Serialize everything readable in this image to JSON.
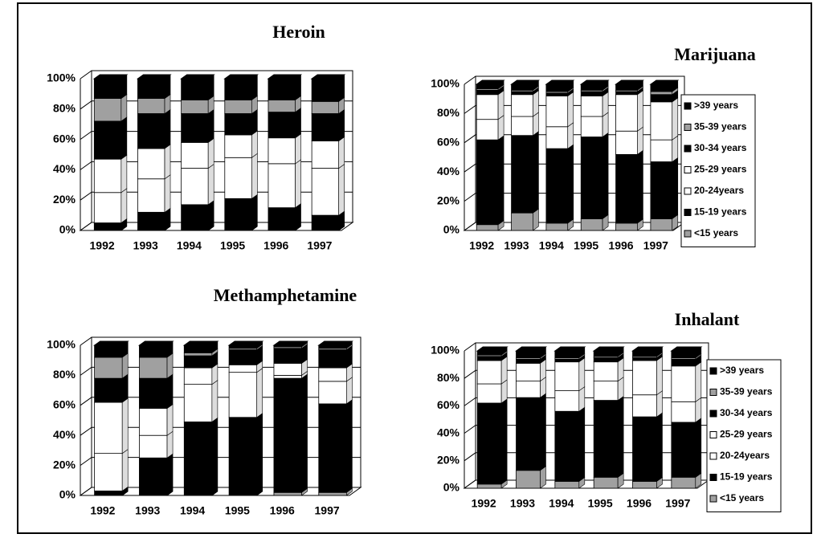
{
  "chart_data": [
    {
      "type": "bar",
      "stacked": true,
      "title": "Heroin",
      "legend": "none",
      "categories": [
        "1992",
        "1993",
        "1994",
        "1995",
        "1996",
        "1997"
      ],
      "ylim": [
        0,
        100
      ],
      "yticks": [
        {
          "value": 0,
          "label": "0%"
        },
        {
          "value": 20,
          "label": "20%"
        },
        {
          "value": 40,
          "label": "40%"
        },
        {
          "value": 60,
          "label": "60%"
        },
        {
          "value": 80,
          "label": "80%"
        },
        {
          "value": 100,
          "label": "100%"
        }
      ],
      "series": [
        {
          "name": "<15 years",
          "color": "#a0a0a0",
          "values": [
            0,
            0,
            0,
            0,
            0,
            0
          ]
        },
        {
          "name": "15-19 years",
          "color": "#000000",
          "values": [
            5,
            12,
            17,
            21,
            15,
            10
          ]
        },
        {
          "name": "20-24years",
          "color": "#ffffff",
          "values": [
            20,
            22,
            24,
            27,
            29,
            31
          ]
        },
        {
          "name": "25-29 years",
          "color": "#ffffff",
          "values": [
            22,
            20,
            17,
            15,
            17,
            18
          ]
        },
        {
          "name": "30-34 years",
          "color": "#000000",
          "values": [
            25,
            23,
            19,
            14,
            17,
            18
          ]
        },
        {
          "name": "35-39 years",
          "color": "#a0a0a0",
          "values": [
            15,
            10,
            9,
            9,
            8,
            8
          ]
        },
        {
          "name": ">39 years",
          "color": "#000000",
          "values": [
            13,
            13,
            14,
            14,
            14,
            15
          ]
        }
      ]
    },
    {
      "type": "bar",
      "stacked": true,
      "title": "Marijuana",
      "legend": "right",
      "categories": [
        "1992",
        "1993",
        "1994",
        "1995",
        "1996",
        "1997"
      ],
      "ylim": [
        0,
        100
      ],
      "yticks": [
        {
          "value": 0,
          "label": "0%"
        },
        {
          "value": 20,
          "label": "20%"
        },
        {
          "value": 40,
          "label": "40%"
        },
        {
          "value": 60,
          "label": "60%"
        },
        {
          "value": 80,
          "label": "80%"
        },
        {
          "value": 100,
          "label": "100%"
        }
      ],
      "series": [
        {
          "name": "<15 years",
          "color": "#a0a0a0",
          "values": [
            4,
            12,
            5,
            8,
            5,
            8
          ]
        },
        {
          "name": "15-19 years",
          "color": "#000000",
          "values": [
            58,
            53,
            51,
            56,
            47,
            39
          ]
        },
        {
          "name": "20-24years",
          "color": "#ffffff",
          "values": [
            14,
            13,
            15,
            14,
            16,
            15
          ]
        },
        {
          "name": "25-29 years",
          "color": "#ffffff",
          "values": [
            17,
            15,
            21,
            14,
            25,
            26
          ]
        },
        {
          "name": "30-34 years",
          "color": "#000000",
          "values": [
            3,
            2,
            2,
            3,
            2,
            5
          ]
        },
        {
          "name": "35-39 years",
          "color": "#a0a0a0",
          "values": [
            1,
            1,
            1,
            1,
            1,
            2
          ]
        },
        {
          "name": ">39 years",
          "color": "#000000",
          "values": [
            3,
            4,
            5,
            4,
            4,
            5
          ]
        }
      ]
    },
    {
      "type": "bar",
      "stacked": true,
      "title": "Methamphetamine",
      "legend": "none",
      "categories": [
        "1992",
        "1993",
        "1994",
        "1995",
        "1996",
        "1997"
      ],
      "ylim": [
        0,
        100
      ],
      "yticks": [
        {
          "value": 0,
          "label": "0%"
        },
        {
          "value": 20,
          "label": "20%"
        },
        {
          "value": 40,
          "label": "40%"
        },
        {
          "value": 60,
          "label": "60%"
        },
        {
          "value": 80,
          "label": "80%"
        },
        {
          "value": 100,
          "label": "100%"
        }
      ],
      "series": [
        {
          "name": "<15 years",
          "color": "#a0a0a0",
          "values": [
            0,
            0,
            0,
            0,
            2,
            2
          ]
        },
        {
          "name": "15-19 years",
          "color": "#000000",
          "values": [
            3,
            25,
            49,
            52,
            76,
            59
          ]
        },
        {
          "name": "20-24years",
          "color": "#ffffff",
          "values": [
            25,
            15,
            25,
            30,
            2,
            15
          ]
        },
        {
          "name": "25-29 years",
          "color": "#ffffff",
          "values": [
            34,
            18,
            11,
            5,
            8,
            9
          ]
        },
        {
          "name": "30-34 years",
          "color": "#000000",
          "values": [
            16,
            20,
            8,
            10,
            10,
            12
          ]
        },
        {
          "name": "35-39 years",
          "color": "#a0a0a0",
          "values": [
            14,
            14,
            2,
            1,
            1,
            1
          ]
        },
        {
          "name": ">39 years",
          "color": "#000000",
          "values": [
            8,
            8,
            5,
            2,
            1,
            2
          ]
        }
      ]
    },
    {
      "type": "bar",
      "stacked": true,
      "title": "Inhalant",
      "legend": "right",
      "categories": [
        "1992",
        "1993",
        "1994",
        "1995",
        "1996",
        "1997"
      ],
      "ylim": [
        0,
        100
      ],
      "yticks": [
        {
          "value": 0,
          "label": "0%"
        },
        {
          "value": 20,
          "label": "20%"
        },
        {
          "value": 40,
          "label": "40%"
        },
        {
          "value": 60,
          "label": "60%"
        },
        {
          "value": 80,
          "label": "80%"
        },
        {
          "value": 100,
          "label": "100%"
        }
      ],
      "series": [
        {
          "name": "<15 years",
          "color": "#a0a0a0",
          "values": [
            3,
            13,
            5,
            8,
            5,
            8
          ]
        },
        {
          "name": "15-19 years",
          "color": "#000000",
          "values": [
            59,
            53,
            51,
            56,
            47,
            40
          ]
        },
        {
          "name": "20-24years",
          "color": "#ffffff",
          "values": [
            14,
            12,
            15,
            14,
            16,
            15
          ]
        },
        {
          "name": "25-29 years",
          "color": "#ffffff",
          "values": [
            17,
            13,
            21,
            14,
            25,
            26
          ]
        },
        {
          "name": "30-34 years",
          "color": "#000000",
          "values": [
            3,
            3,
            2,
            3,
            2,
            5
          ]
        },
        {
          "name": "35-39 years",
          "color": "#a0a0a0",
          "values": [
            1,
            1,
            1,
            1,
            1,
            1
          ]
        },
        {
          "name": ">39 years",
          "color": "#000000",
          "values": [
            3,
            5,
            5,
            4,
            4,
            5
          ]
        }
      ]
    }
  ]
}
